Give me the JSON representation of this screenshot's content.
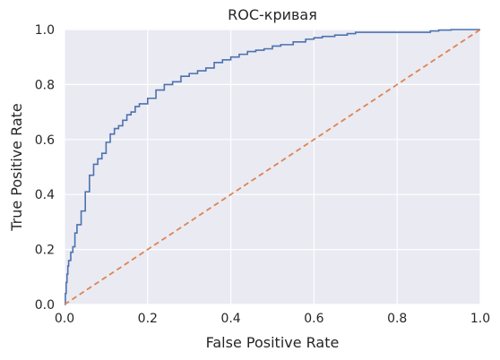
{
  "chart_data": {
    "type": "line",
    "title": "ROC-кривая",
    "xlabel": "False Positive Rate",
    "ylabel": "True Positive Rate",
    "xlim": [
      0,
      1
    ],
    "ylim": [
      0,
      1
    ],
    "xticks": [
      "0.0",
      "0.2",
      "0.4",
      "0.6",
      "0.8",
      "1.0"
    ],
    "yticks": [
      "0.0",
      "0.2",
      "0.4",
      "0.6",
      "0.8",
      "1.0"
    ],
    "grid": true,
    "background": "#eaeaf2",
    "series": [
      {
        "color": "#4c72b0",
        "style": "solid",
        "x": [
          0,
          0.002,
          0.004,
          0.006,
          0.008,
          0.01,
          0.015,
          0.02,
          0.025,
          0.03,
          0.04,
          0.05,
          0.06,
          0.07,
          0.08,
          0.09,
          0.1,
          0.11,
          0.12,
          0.13,
          0.14,
          0.15,
          0.16,
          0.17,
          0.18,
          0.2,
          0.22,
          0.24,
          0.26,
          0.28,
          0.3,
          0.32,
          0.34,
          0.36,
          0.38,
          0.4,
          0.42,
          0.44,
          0.46,
          0.48,
          0.5,
          0.52,
          0.55,
          0.58,
          0.6,
          0.62,
          0.65,
          0.68,
          0.7,
          0.72,
          0.75,
          0.78,
          0.8,
          0.82,
          0.85,
          0.88,
          0.9,
          0.93,
          0.96,
          1.0
        ],
        "y": [
          0,
          0.04,
          0.08,
          0.11,
          0.14,
          0.16,
          0.19,
          0.21,
          0.26,
          0.29,
          0.34,
          0.41,
          0.47,
          0.51,
          0.53,
          0.55,
          0.59,
          0.62,
          0.64,
          0.65,
          0.67,
          0.69,
          0.7,
          0.72,
          0.73,
          0.75,
          0.78,
          0.8,
          0.81,
          0.83,
          0.84,
          0.85,
          0.86,
          0.88,
          0.89,
          0.9,
          0.91,
          0.92,
          0.925,
          0.93,
          0.94,
          0.945,
          0.955,
          0.965,
          0.97,
          0.975,
          0.98,
          0.985,
          0.99,
          0.99,
          0.99,
          0.99,
          0.99,
          0.99,
          0.99,
          0.995,
          0.998,
          1.0,
          1.0,
          1.0
        ]
      },
      {
        "color": "#dd8452",
        "style": "dashed",
        "x": [
          0,
          1
        ],
        "y": [
          0,
          1
        ]
      }
    ]
  }
}
